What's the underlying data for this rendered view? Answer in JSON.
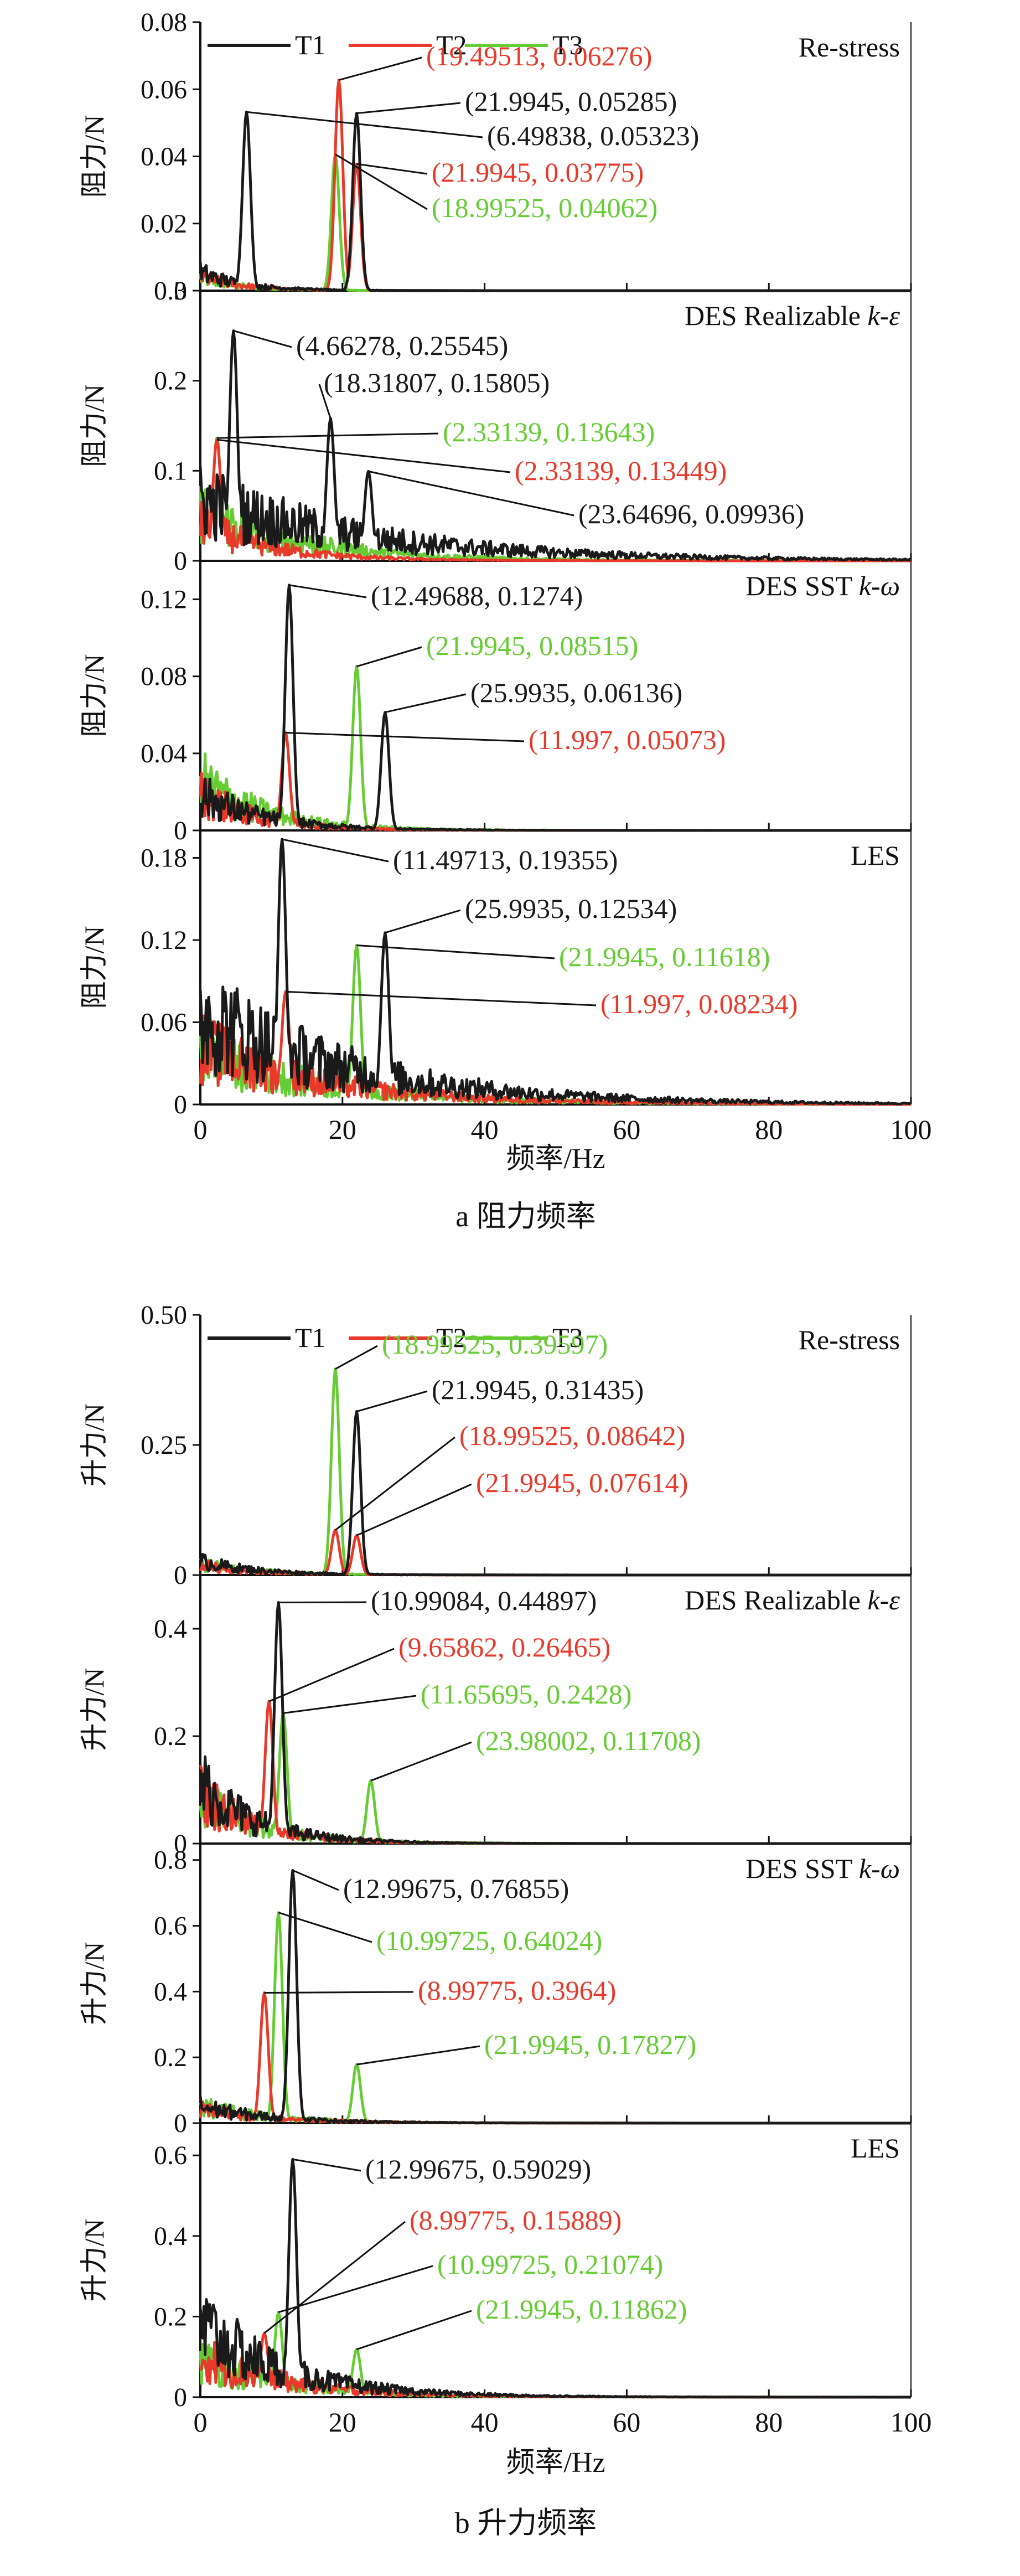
{
  "colors": {
    "T1": "#1a1a1a",
    "T2": "#e8392a",
    "T3": "#66cc33",
    "axis": "#111111"
  },
  "figure": {
    "xlabel": "频率/Hz",
    "caption_a": "a  阻力频率",
    "caption_b": "b  升力频率"
  },
  "chart_data": [
    {
      "type": "line",
      "group": "a",
      "title": "Re-stress",
      "ylabel": "阻力/N",
      "xlim": [
        0,
        100
      ],
      "ylim": [
        0,
        0.08
      ],
      "yticks": [
        "0",
        "0.02",
        "0.04",
        "0.06",
        "0.08"
      ],
      "xticks": [],
      "legend": [
        "T1",
        "T2",
        "T3"
      ],
      "series": [
        {
          "name": "T1",
          "peaks": [
            [
              6.49838,
              0.05323
            ],
            [
              21.9945,
              0.05285
            ]
          ]
        },
        {
          "name": "T2",
          "peaks": [
            [
              19.49513,
              0.06276
            ],
            [
              21.9945,
              0.03775
            ]
          ]
        },
        {
          "name": "T3",
          "peaks": [
            [
              18.99525,
              0.04062
            ]
          ]
        }
      ],
      "annotations": [
        {
          "text": "(19.49513, 0.06276)",
          "series": "T2",
          "x": 19.49513,
          "y": 0.06276
        },
        {
          "text": "(21.9945, 0.05285)",
          "series": "T1",
          "x": 21.9945,
          "y": 0.05285
        },
        {
          "text": "(6.49838, 0.05323)",
          "series": "T1",
          "x": 6.49838,
          "y": 0.05323
        },
        {
          "text": "(21.9945, 0.03775)",
          "series": "T2",
          "x": 21.9945,
          "y": 0.03775
        },
        {
          "text": "(18.99525, 0.04062)",
          "series": "T3",
          "x": 18.99525,
          "y": 0.04062
        }
      ]
    },
    {
      "type": "line",
      "group": "a",
      "title": "DES Realizable k-ε",
      "ylabel": "阻力/N",
      "xlim": [
        0,
        100
      ],
      "ylim": [
        0,
        0.3
      ],
      "yticks": [
        "0",
        "0.1",
        "0.2",
        "0.3"
      ],
      "xticks": [],
      "series": [
        {
          "name": "T1",
          "peaks": [
            [
              4.66278,
              0.25545
            ],
            [
              18.31807,
              0.15805
            ],
            [
              23.64696,
              0.09936
            ]
          ]
        },
        {
          "name": "T2",
          "peaks": [
            [
              2.33139,
              0.13449
            ]
          ]
        },
        {
          "name": "T3",
          "peaks": [
            [
              2.33139,
              0.13643
            ]
          ]
        }
      ],
      "annotations": [
        {
          "text": "(4.66278, 0.25545)",
          "series": "T1",
          "x": 4.66278,
          "y": 0.25545
        },
        {
          "text": "(18.31807, 0.15805)",
          "series": "T1",
          "x": 18.31807,
          "y": 0.15805
        },
        {
          "text": "(2.33139, 0.13643)",
          "series": "T3",
          "x": 2.33139,
          "y": 0.13643
        },
        {
          "text": "(2.33139, 0.13449)",
          "series": "T2",
          "x": 2.33139,
          "y": 0.13449
        },
        {
          "text": "(23.64696, 0.09936)",
          "series": "T1",
          "x": 23.64696,
          "y": 0.09936
        }
      ]
    },
    {
      "type": "line",
      "group": "a",
      "title": "DES SST k-ω",
      "ylabel": "阻力/N",
      "xlim": [
        0,
        100
      ],
      "ylim": [
        0,
        0.14
      ],
      "yticks": [
        "0",
        "0.04",
        "0.08",
        "0.12"
      ],
      "xticks": [],
      "series": [
        {
          "name": "T1",
          "peaks": [
            [
              12.49688,
              0.1274
            ],
            [
              25.9935,
              0.06136
            ]
          ]
        },
        {
          "name": "T2",
          "peaks": [
            [
              11.997,
              0.05073
            ]
          ]
        },
        {
          "name": "T3",
          "peaks": [
            [
              21.9945,
              0.08515
            ]
          ]
        }
      ],
      "annotations": [
        {
          "text": "(12.49688, 0.1274)",
          "series": "T1",
          "x": 12.49688,
          "y": 0.1274
        },
        {
          "text": "(21.9945, 0.08515)",
          "series": "T3",
          "x": 21.9945,
          "y": 0.08515
        },
        {
          "text": "(25.9935, 0.06136)",
          "series": "T1",
          "x": 25.9935,
          "y": 0.06136
        },
        {
          "text": "(11.997, 0.05073)",
          "series": "T2",
          "x": 11.997,
          "y": 0.05073
        }
      ]
    },
    {
      "type": "line",
      "group": "a",
      "title": "LES",
      "ylabel": "阻力/N",
      "xlim": [
        0,
        100
      ],
      "ylim": [
        0,
        0.2
      ],
      "yticks": [
        "0",
        "0.06",
        "0.12",
        "0.18"
      ],
      "xticks": [
        "0",
        "20",
        "40",
        "60",
        "80",
        "100"
      ],
      "series": [
        {
          "name": "T1",
          "peaks": [
            [
              11.49713,
              0.19355
            ],
            [
              25.9935,
              0.12534
            ]
          ]
        },
        {
          "name": "T2",
          "peaks": [
            [
              11.997,
              0.08234
            ]
          ]
        },
        {
          "name": "T3",
          "peaks": [
            [
              21.9945,
              0.11618
            ]
          ]
        }
      ],
      "annotations": [
        {
          "text": "(11.49713, 0.19355)",
          "series": "T1",
          "x": 11.49713,
          "y": 0.19355
        },
        {
          "text": "(25.9935, 0.12534)",
          "series": "T1",
          "x": 25.9935,
          "y": 0.12534
        },
        {
          "text": "(21.9945, 0.11618)",
          "series": "T3",
          "x": 21.9945,
          "y": 0.11618
        },
        {
          "text": "(11.997, 0.08234)",
          "series": "T2",
          "x": 11.997,
          "y": 0.08234
        }
      ]
    },
    {
      "type": "line",
      "group": "b",
      "title": "Re-stress",
      "ylabel": "升力/N",
      "xlim": [
        0,
        100
      ],
      "ylim": [
        0,
        0.5
      ],
      "yticks": [
        "0",
        "0.25",
        "0.50"
      ],
      "xticks": [],
      "legend": [
        "T1",
        "T2",
        "T3"
      ],
      "series": [
        {
          "name": "T1",
          "peaks": [
            [
              21.9945,
              0.31435
            ]
          ]
        },
        {
          "name": "T2",
          "peaks": [
            [
              18.99525,
              0.08642
            ],
            [
              21.9945,
              0.07614
            ]
          ]
        },
        {
          "name": "T3",
          "peaks": [
            [
              18.99525,
              0.39597
            ]
          ]
        }
      ],
      "annotations": [
        {
          "text": "(18.99525, 0.39597)",
          "series": "T3",
          "x": 18.99525,
          "y": 0.39597
        },
        {
          "text": "(21.9945, 0.31435)",
          "series": "T1",
          "x": 21.9945,
          "y": 0.31435
        },
        {
          "text": "(18.99525, 0.08642)",
          "series": "T2",
          "x": 18.99525,
          "y": 0.08642
        },
        {
          "text": "(21.9945, 0.07614)",
          "series": "T2",
          "x": 21.9945,
          "y": 0.07614
        }
      ]
    },
    {
      "type": "line",
      "group": "b",
      "title": "DES Realizable k-ε",
      "ylabel": "升力/N",
      "xlim": [
        0,
        100
      ],
      "ylim": [
        0,
        0.5
      ],
      "yticks": [
        "0",
        "0.2",
        "0.4"
      ],
      "xticks": [],
      "series": [
        {
          "name": "T1",
          "peaks": [
            [
              10.99084,
              0.44897
            ]
          ]
        },
        {
          "name": "T2",
          "peaks": [
            [
              9.65862,
              0.26465
            ]
          ]
        },
        {
          "name": "T3",
          "peaks": [
            [
              11.65695,
              0.2428
            ],
            [
              23.98002,
              0.11708
            ]
          ]
        }
      ],
      "annotations": [
        {
          "text": "(10.99084, 0.44897)",
          "series": "T1",
          "x": 10.99084,
          "y": 0.44897
        },
        {
          "text": "(9.65862, 0.26465)",
          "series": "T2",
          "x": 9.65862,
          "y": 0.26465
        },
        {
          "text": "(11.65695, 0.2428)",
          "series": "T3",
          "x": 11.65695,
          "y": 0.2428
        },
        {
          "text": "(23.98002, 0.11708)",
          "series": "T3",
          "x": 23.98002,
          "y": 0.11708
        }
      ]
    },
    {
      "type": "line",
      "group": "b",
      "title": "DES SST k-ω",
      "ylabel": "升力/N",
      "xlim": [
        0,
        100
      ],
      "ylim": [
        0,
        0.85
      ],
      "yticks": [
        "0",
        "0.2",
        "0.4",
        "0.6",
        "0.8"
      ],
      "xticks": [],
      "series": [
        {
          "name": "T1",
          "peaks": [
            [
              12.99675,
              0.76855
            ]
          ]
        },
        {
          "name": "T2",
          "peaks": [
            [
              8.99775,
              0.3964
            ]
          ]
        },
        {
          "name": "T3",
          "peaks": [
            [
              10.99725,
              0.64024
            ],
            [
              21.9945,
              0.17827
            ]
          ]
        }
      ],
      "annotations": [
        {
          "text": "(12.99675, 0.76855)",
          "series": "T1",
          "x": 12.99675,
          "y": 0.76855
        },
        {
          "text": "(10.99725, 0.64024)",
          "series": "T3",
          "x": 10.99725,
          "y": 0.64024
        },
        {
          "text": "(8.99775, 0.3964)",
          "series": "T2",
          "x": 8.99775,
          "y": 0.3964
        },
        {
          "text": "(21.9945, 0.17827)",
          "series": "T3",
          "x": 21.9945,
          "y": 0.17827
        }
      ]
    },
    {
      "type": "line",
      "group": "b",
      "title": "LES",
      "ylabel": "升力/N",
      "xlim": [
        0,
        100
      ],
      "ylim": [
        0,
        0.68
      ],
      "yticks": [
        "0",
        "0.2",
        "0.4",
        "0.6"
      ],
      "xticks": [
        "0",
        "20",
        "40",
        "60",
        "80",
        "100"
      ],
      "series": [
        {
          "name": "T1",
          "peaks": [
            [
              12.99675,
              0.59029
            ]
          ]
        },
        {
          "name": "T2",
          "peaks": [
            [
              8.99775,
              0.15889
            ]
          ]
        },
        {
          "name": "T3",
          "peaks": [
            [
              10.99725,
              0.21074
            ],
            [
              21.9945,
              0.11862
            ]
          ]
        }
      ],
      "annotations": [
        {
          "text": "(12.99675, 0.59029)",
          "series": "T1",
          "x": 12.99675,
          "y": 0.59029
        },
        {
          "text": "(8.99775, 0.15889)",
          "series": "T2",
          "x": 8.99775,
          "y": 0.15889
        },
        {
          "text": "(10.99725, 0.21074)",
          "series": "T3",
          "x": 10.99725,
          "y": 0.21074
        },
        {
          "text": "(21.9945, 0.11862)",
          "series": "T3",
          "x": 21.9945,
          "y": 0.11862
        }
      ]
    }
  ]
}
